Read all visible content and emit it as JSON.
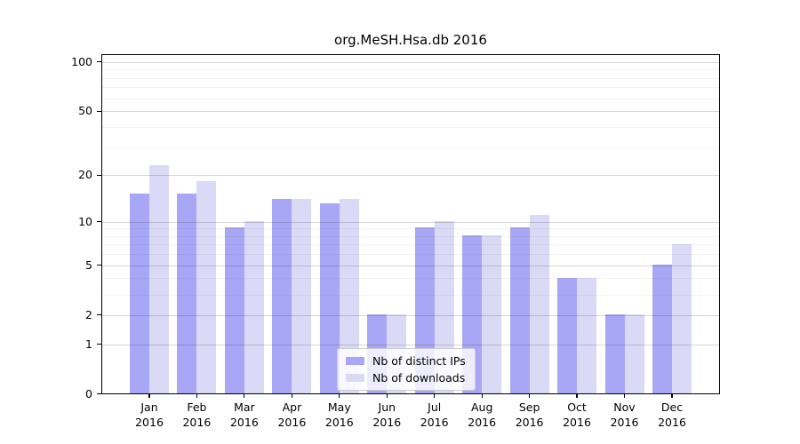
{
  "title": "org.MeSH.Hsa.db 2016",
  "legend": {
    "items": [
      {
        "label": "Nb of distinct IPs",
        "color": "#a7a7f5"
      },
      {
        "label": "Nb of downloads",
        "color": "#dadaf7"
      }
    ]
  },
  "chart_data": {
    "type": "bar",
    "title": "org.MeSH.Hsa.db 2016",
    "categories": [
      "Jan 2016",
      "Feb 2016",
      "Mar 2016",
      "Apr 2016",
      "May 2016",
      "Jun 2016",
      "Jul 2016",
      "Aug 2016",
      "Sep 2016",
      "Oct 2016",
      "Nov 2016",
      "Dec 2016"
    ],
    "x_tick_labels": [
      {
        "month": "Jan",
        "year": "2016"
      },
      {
        "month": "Feb",
        "year": "2016"
      },
      {
        "month": "Mar",
        "year": "2016"
      },
      {
        "month": "Apr",
        "year": "2016"
      },
      {
        "month": "May",
        "year": "2016"
      },
      {
        "month": "Jun",
        "year": "2016"
      },
      {
        "month": "Jul",
        "year": "2016"
      },
      {
        "month": "Aug",
        "year": "2016"
      },
      {
        "month": "Sep",
        "year": "2016"
      },
      {
        "month": "Oct",
        "year": "2016"
      },
      {
        "month": "Nov",
        "year": "2016"
      },
      {
        "month": "Dec",
        "year": "2016"
      }
    ],
    "series": [
      {
        "name": "Nb of distinct IPs",
        "color": "#a7a7f5",
        "values": [
          15,
          15,
          9,
          14,
          13,
          2,
          9,
          8,
          9,
          4,
          2,
          5
        ]
      },
      {
        "name": "Nb of downloads",
        "color": "#dadaf7",
        "values": [
          23,
          18,
          10,
          14,
          14,
          2,
          10,
          8,
          11,
          4,
          2,
          7
        ]
      }
    ],
    "yscale": "log10(1+x)",
    "y_tick_values": [
      100,
      50,
      20,
      10,
      5,
      2,
      1,
      0
    ],
    "y_major_gridlines": [
      1,
      2,
      5,
      10,
      20,
      50,
      100
    ],
    "y_minor_gridlines": [
      3,
      4,
      6,
      7,
      8,
      9,
      30,
      40,
      60,
      70,
      80,
      90
    ],
    "ylim": [
      0,
      112
    ],
    "grid": true,
    "legend_position": "lower center"
  }
}
